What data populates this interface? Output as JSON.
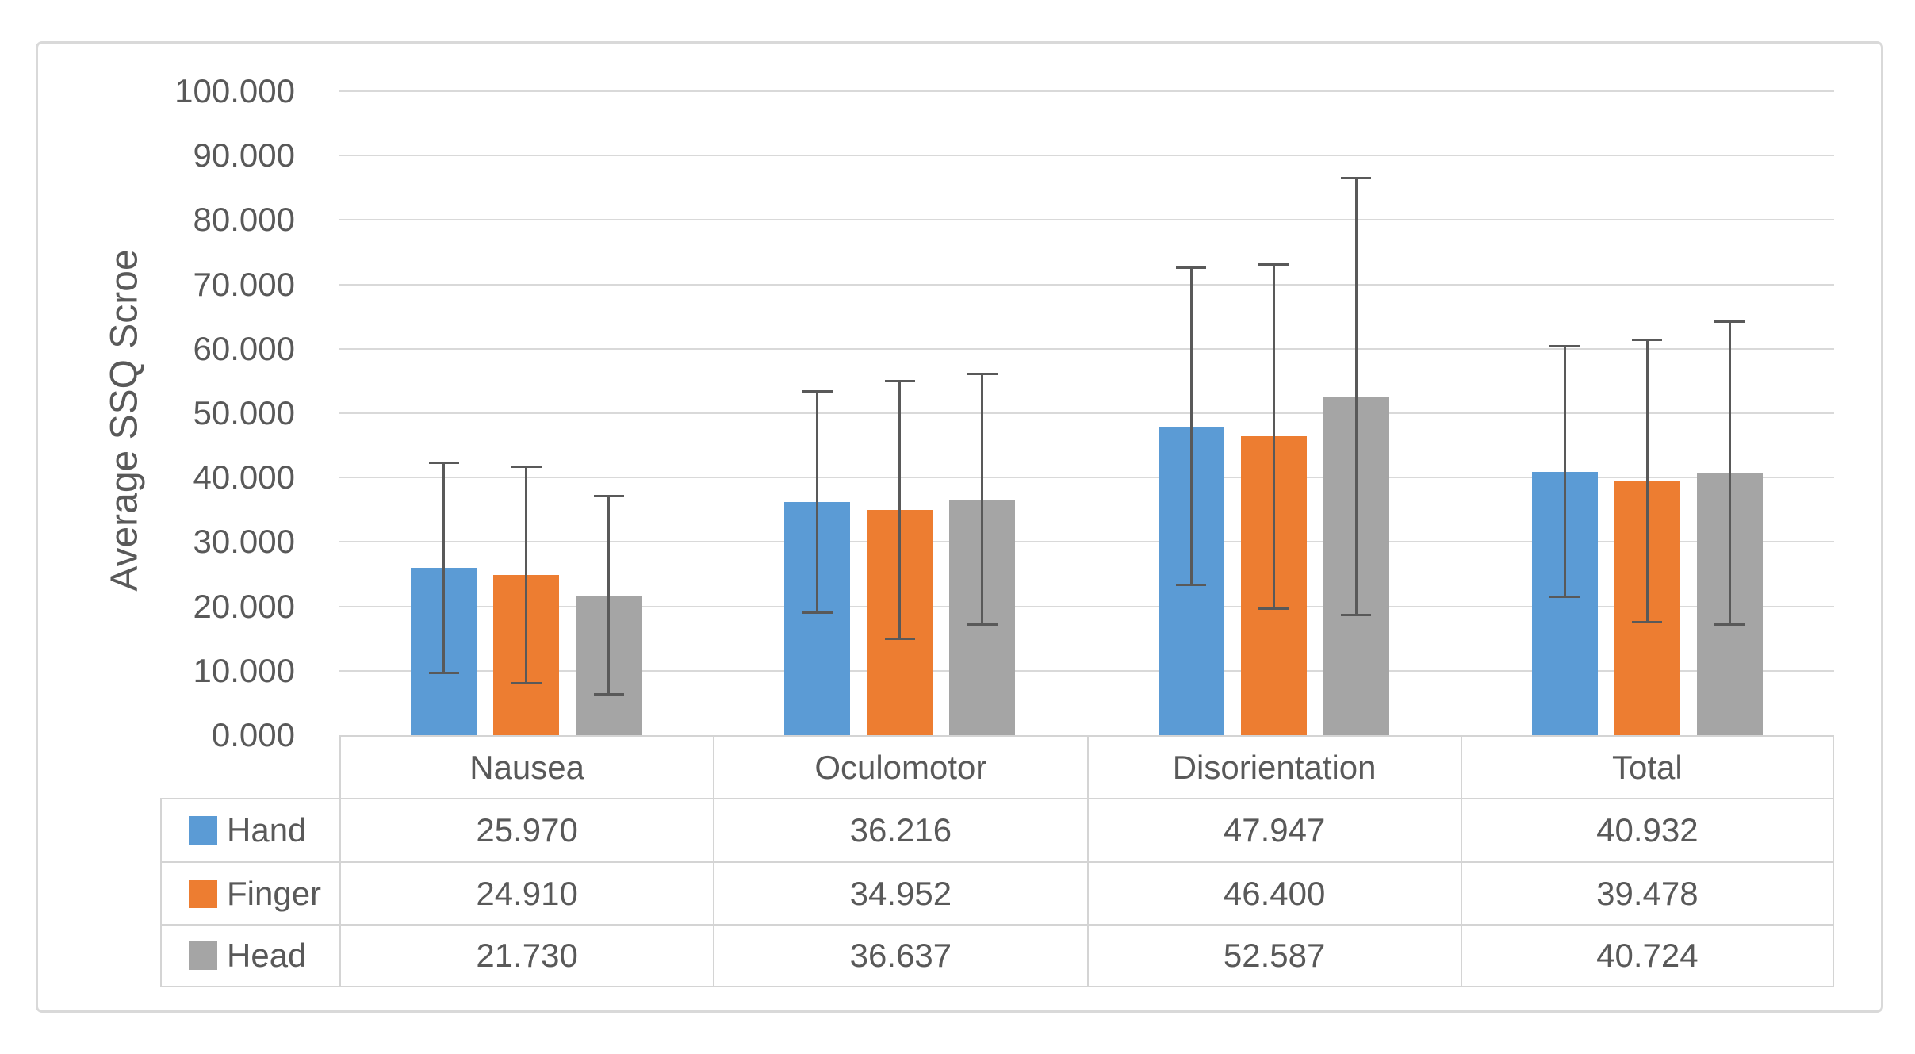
{
  "chart_data": {
    "type": "bar",
    "title": "",
    "xlabel": "",
    "ylabel": "Average SSQ Scroe",
    "categories": [
      "Nausea",
      "Oculomotor",
      "Disorientation",
      "Total"
    ],
    "series": [
      {
        "name": "Hand",
        "color": "#5B9BD5",
        "values": [
          25.97,
          36.216,
          47.947,
          40.932
        ],
        "errors": [
          16.3,
          17.2,
          24.6,
          19.5
        ]
      },
      {
        "name": "Finger",
        "color": "#ED7D31",
        "values": [
          24.91,
          34.952,
          46.4,
          39.478
        ],
        "errors": [
          16.8,
          20.0,
          26.7,
          21.9
        ]
      },
      {
        "name": "Head",
        "color": "#A5A5A5",
        "values": [
          21.73,
          36.637,
          52.587,
          40.724
        ],
        "errors": [
          15.4,
          19.5,
          33.9,
          23.5
        ]
      }
    ],
    "ylim": [
      0,
      100
    ],
    "ytick_step": 10,
    "ytick_labels": [
      "0.000",
      "10.000",
      "20.000",
      "30.000",
      "40.000",
      "50.000",
      "60.000",
      "70.000",
      "80.000",
      "90.000",
      "100.000"
    ],
    "value_decimals": 3,
    "grid": true,
    "legend_position": "data-table-left",
    "error_bars": "plus-minus with caps",
    "colors": {
      "grid": "#D9D9D9",
      "frame_border": "#D9D9D9",
      "table_border": "#D4D4D4",
      "axis_text": "#595959",
      "error_bar": "#595959",
      "background": "#FFFFFF"
    }
  }
}
